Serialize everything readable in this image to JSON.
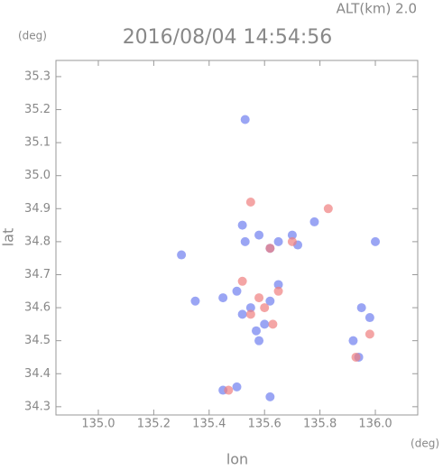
{
  "chart_data": {
    "type": "scatter",
    "title": "2016/08/04 14:54:56",
    "subtitle": "ALT(km) 2.0",
    "y_unit": "(deg)",
    "x_unit": "(deg)",
    "x_label": "lon",
    "y_label": "lat",
    "xlim": [
      134.847,
      136.153
    ],
    "ylim": [
      34.275,
      35.349
    ],
    "xticks": [
      {
        "value": 135,
        "label": "135.0"
      },
      135.2,
      135.4,
      135.6,
      135.8,
      {
        "value": 136,
        "label": "136.0"
      }
    ],
    "yticks": [
      34.3,
      34.4,
      34.5,
      34.6,
      34.7,
      34.8,
      34.9,
      {
        "value": 35,
        "label": "35.0"
      },
      35.1,
      35.2,
      35.3
    ],
    "grid": false,
    "series": [
      {
        "color": "#6f7ff0",
        "x": [
          135.52,
          135.53,
          135.58,
          135.62,
          135.65,
          135.7,
          135.72,
          135.78,
          135.3,
          136.0,
          135.5,
          135.55,
          135.6,
          135.58,
          135.62,
          135.65,
          135.45,
          135.95,
          135.98,
          135.92,
          135.94,
          135.45,
          135.5,
          135.62,
          135.53,
          135.35,
          135.57,
          135.52
        ],
        "y": [
          34.85,
          34.8,
          34.82,
          34.78,
          34.8,
          34.82,
          34.79,
          34.86,
          34.76,
          34.8,
          34.65,
          34.6,
          34.55,
          34.5,
          34.62,
          34.67,
          34.63,
          34.6,
          34.57,
          34.5,
          34.45,
          34.35,
          34.36,
          34.33,
          35.17,
          34.62,
          34.53,
          34.58
        ]
      },
      {
        "color": "#f07f7f",
        "x": [
          135.55,
          135.83,
          135.62,
          135.52,
          135.6,
          135.55,
          135.65,
          135.93,
          135.98,
          135.47,
          135.7,
          135.63,
          135.58
        ],
        "y": [
          34.92,
          34.9,
          34.78,
          34.68,
          34.6,
          34.58,
          34.65,
          34.45,
          34.52,
          34.35,
          34.8,
          34.55,
          34.63
        ]
      }
    ]
  }
}
